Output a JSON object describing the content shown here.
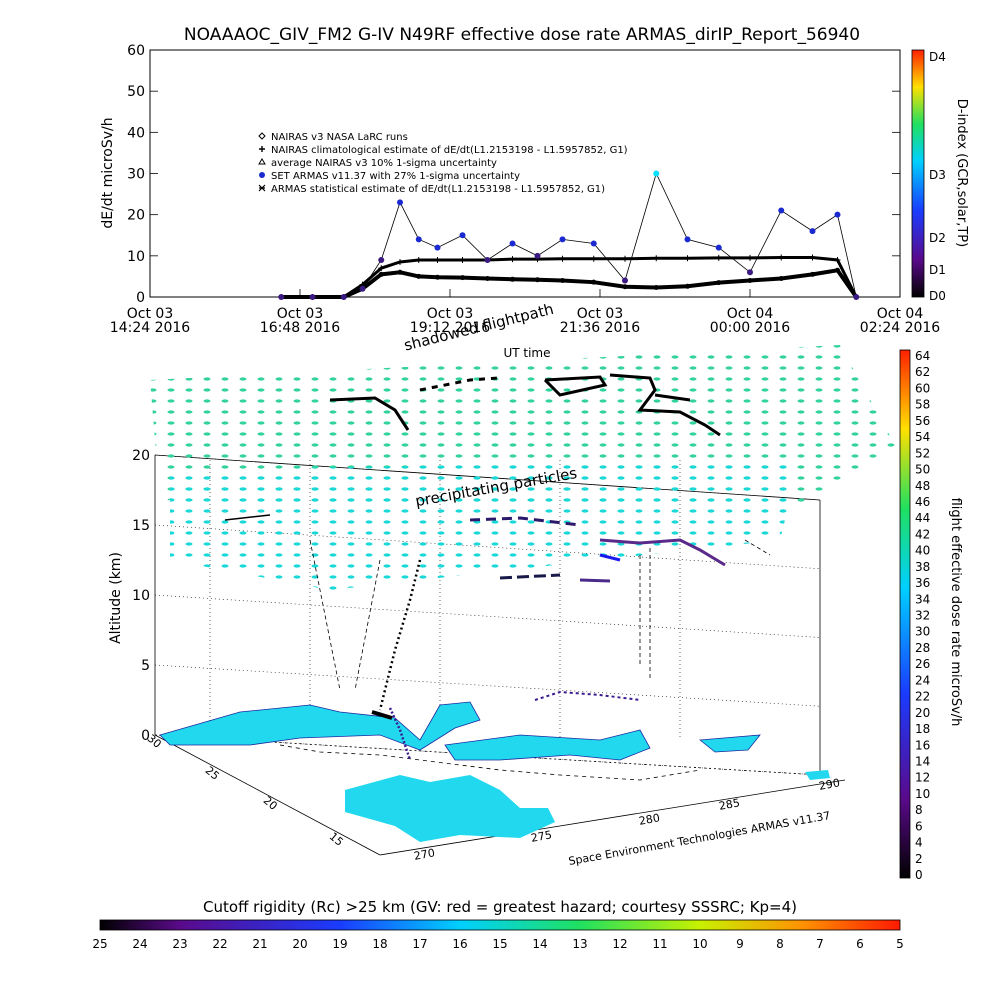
{
  "title": "NOAAAOC_GIV_FM2 G-IV    N49RF   effective dose rate ARMAS_dirIP_Report_56940",
  "chart_data": [
    {
      "type": "line",
      "ylabel": "dE/dt microSv/h",
      "xlabel": "UT time",
      "ylim": [
        0,
        60
      ],
      "yticks": [
        "0",
        "10",
        "20",
        "30",
        "40",
        "50",
        "60"
      ],
      "xticks": [
        {
          "line1": "Oct 03",
          "line2": "14:24 2016"
        },
        {
          "line1": "Oct 03",
          "line2": "16:48 2016"
        },
        {
          "line1": "Oct 03",
          "line2": "19:12 2016"
        },
        {
          "line1": "Oct 03",
          "line2": "21:36 2016"
        },
        {
          "line1": "Oct 04",
          "line2": "00:00 2016"
        },
        {
          "line1": "Oct 04",
          "line2": "02:24 2016"
        }
      ],
      "legend": [
        {
          "symbol": "diamond",
          "text": "NAIRAS v3 NASA LaRC runs"
        },
        {
          "symbol": "plus",
          "text": "NAIRAS climatological estimate of dE/dt(L1.2153198 - L1.5957852, G1)"
        },
        {
          "symbol": "triangle",
          "text": "average NAIRAS v3 10% 1-sigma uncertainty"
        },
        {
          "symbol": "filled-circle",
          "text": "SET ARMAS v11.37 with 27% 1-sigma uncertainty"
        },
        {
          "symbol": "asterisk",
          "text": "ARMAS statistical estimate of dE/dt(L1.2153198 - L1.5957852, G1)"
        }
      ],
      "colorbar": {
        "label": "D-index (GCR,solar,TP)",
        "ticks": [
          "D4",
          "D3",
          "D2",
          "D1",
          "D0"
        ]
      },
      "x_hours": [
        16.5,
        17.0,
        17.5,
        17.8,
        18.1,
        18.4,
        18.7,
        19.0,
        19.4,
        19.8,
        20.2,
        20.6,
        21.0,
        21.5,
        22.0,
        22.5,
        23.0,
        23.5,
        24.0,
        24.5,
        25.0,
        25.4,
        25.7
      ],
      "series": [
        {
          "name": "NAIRAS climatological estimate of dE/dt(L1.2153198 - L1.5957852, G1)",
          "values": [
            0,
            0,
            0,
            3,
            7,
            8.5,
            9,
            9,
            9,
            9,
            9.2,
            9.2,
            9.3,
            9.3,
            9.3,
            9.4,
            9.4,
            9.5,
            9.5,
            9.6,
            9.6,
            9,
            0
          ]
        },
        {
          "name": "ARMAS statistical estimate of dE/dt(L1.2153198 - L1.5957852, G1)",
          "values": [
            0,
            0,
            0,
            2,
            5.5,
            6,
            5,
            4.8,
            4.7,
            4.5,
            4.3,
            4.2,
            4.0,
            3.6,
            2.5,
            2.3,
            2.6,
            3.5,
            4,
            4.5,
            5.5,
            6.5,
            0
          ]
        },
        {
          "name": "SET ARMAS v11.37 with 27% 1-sigma uncertainty",
          "values": [
            0,
            0,
            0,
            2,
            9,
            23,
            14,
            12,
            15,
            9,
            13,
            10,
            14,
            13,
            4,
            30,
            14,
            12,
            6,
            21,
            16,
            20,
            0
          ]
        }
      ]
    },
    {
      "type": "scatter",
      "title": "shadowed flightpath",
      "annotation": "precipitating particles",
      "zlabel": "Altitude (km)",
      "zticks": [
        "0",
        "5",
        "10",
        "15",
        "20"
      ],
      "lat_ticks": [
        "30",
        "25",
        "20",
        "15"
      ],
      "lon_ticks": [
        "270",
        "275",
        "280",
        "285",
        "290"
      ],
      "credit": "Space Environment Technologies ARMAS v11.37",
      "colorbar": {
        "label": "flight effective dose rate microSv/h",
        "ticks": [
          "64",
          "62",
          "60",
          "58",
          "56",
          "54",
          "52",
          "50",
          "48",
          "46",
          "44",
          "42",
          "40",
          "38",
          "36",
          "34",
          "32",
          "30",
          "28",
          "26",
          "24",
          "22",
          "20",
          "18",
          "16",
          "14",
          "12",
          "10",
          "8",
          "6",
          "4",
          "2",
          "0"
        ]
      }
    },
    {
      "type": "heatmap",
      "title": "Cutoff rigidity (Rc) >25 km (GV: red = greatest hazard; courtesy SSSRC; Kp=4)",
      "ticks": [
        "25",
        "24",
        "23",
        "22",
        "21",
        "20",
        "19",
        "18",
        "17",
        "16",
        "15",
        "14",
        "13",
        "12",
        "11",
        "10",
        "9",
        "8",
        "7",
        "6",
        "5"
      ]
    }
  ],
  "colors": {
    "flight_point": "#00ffdd",
    "grid_mid": "#3ad870",
    "land": "#22d8ee",
    "series_dark": "#000000",
    "series_armas": "#3a1a80"
  }
}
